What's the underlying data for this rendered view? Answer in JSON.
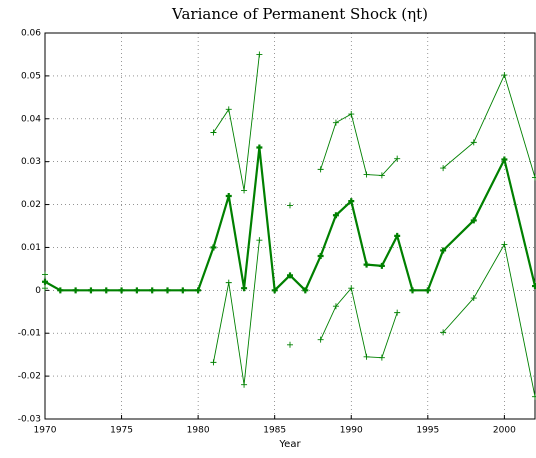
{
  "chart_data": {
    "type": "line",
    "title": "Variance of Permanent Shock (ηt)",
    "xlabel": "Year",
    "x": [
      1970,
      1971,
      1972,
      1973,
      1974,
      1975,
      1976,
      1977,
      1978,
      1979,
      1980,
      1981,
      1982,
      1983,
      1984,
      1985,
      1986,
      1987,
      1988,
      1989,
      1990,
      1991,
      1992,
      1993,
      1994,
      1995,
      1996,
      1998,
      2000,
      2002
    ],
    "series": [
      {
        "color": "#008000",
        "line_width": 2.2,
        "values": [
          0.002,
          0,
          0,
          0,
          0,
          0,
          0,
          0,
          0,
          0,
          0,
          0.01,
          0.022,
          0.0005,
          0.0333,
          0,
          0.0035,
          0,
          0.008,
          0.0175,
          0.0208,
          0.006,
          0.0057,
          0.0127,
          0,
          0,
          0.0093,
          0.0163,
          0.0305,
          0.001
        ]
      },
      {
        "color": "#008000",
        "line_width": 0.9,
        "values": [
          0.0037,
          null,
          null,
          null,
          null,
          null,
          null,
          null,
          null,
          null,
          null,
          0.0368,
          0.0422,
          0.0233,
          0.055,
          null,
          0.0198,
          null,
          0.0282,
          0.0391,
          0.0411,
          0.027,
          0.0268,
          0.0307,
          null,
          null,
          0.0285,
          0.0345,
          0.0502,
          0.0263
        ]
      },
      {
        "color": "#008000",
        "line_width": 0.9,
        "values": [
          0.0005,
          null,
          null,
          null,
          null,
          null,
          null,
          null,
          null,
          null,
          null,
          -0.0168,
          0.0018,
          -0.022,
          0.0117,
          null,
          -0.0127,
          null,
          -0.0115,
          -0.0037,
          0.0005,
          -0.0155,
          -0.0157,
          -0.0052,
          null,
          null,
          -0.0098,
          -0.0018,
          0.0107,
          -0.0248
        ]
      }
    ],
    "xlim": [
      1970,
      2002
    ],
    "xticks": [
      1970,
      1975,
      1980,
      1985,
      1990,
      1995,
      2000
    ],
    "ylim": [
      -0.03,
      0.06
    ],
    "yticks": [
      -0.03,
      -0.02,
      -0.01,
      0,
      0.01,
      0.02,
      0.03,
      0.04,
      0.05,
      0.06
    ],
    "grid": true
  }
}
